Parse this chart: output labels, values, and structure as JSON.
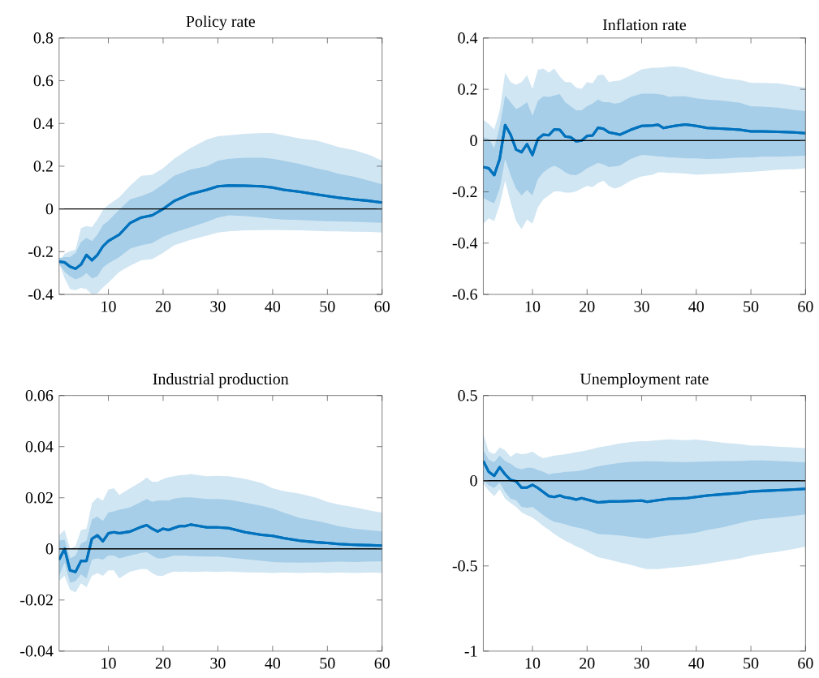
{
  "chart_data": [
    {
      "type": "line",
      "title": "Policy rate",
      "xlim": [
        1,
        60
      ],
      "xticks": [
        10,
        20,
        30,
        40,
        50,
        60
      ],
      "ylim": [
        -0.4,
        0.8
      ],
      "yticks": [
        -0.4,
        -0.2,
        0,
        0.2,
        0.4,
        0.6,
        0.8
      ],
      "ref_lines": [
        {
          "axis": "y",
          "value": 0,
          "color": "#000000"
        }
      ],
      "series": [
        {
          "color": "#0072bd",
          "x": [
            1,
            2,
            3,
            4,
            5,
            6,
            7,
            8,
            9,
            10,
            12,
            14,
            16,
            18,
            20,
            22,
            25,
            28,
            30,
            32,
            35,
            38,
            40,
            42,
            45,
            48,
            50,
            52,
            55,
            58,
            60
          ],
          "values": [
            -0.246,
            -0.25,
            -0.27,
            -0.28,
            -0.26,
            -0.215,
            -0.24,
            -0.215,
            -0.175,
            -0.15,
            -0.12,
            -0.065,
            -0.04,
            -0.03,
            0,
            0.037,
            0.07,
            0.09,
            0.106,
            0.11,
            0.109,
            0.106,
            0.1,
            0.09,
            0.08,
            0.068,
            0.06,
            0.053,
            0.044,
            0.037,
            0.03
          ],
          "upper": [
            -0.244,
            -0.21,
            -0.198,
            -0.19,
            -0.09,
            -0.08,
            -0.085,
            -0.05,
            -0.005,
            0.02,
            0.055,
            0.11,
            0.155,
            0.16,
            0.19,
            0.235,
            0.285,
            0.325,
            0.34,
            0.345,
            0.352,
            0.355,
            0.355,
            0.345,
            0.33,
            0.32,
            0.306,
            0.29,
            0.275,
            0.25,
            0.225
          ],
          "lower": [
            -0.255,
            -0.325,
            -0.375,
            -0.38,
            -0.37,
            -0.375,
            -0.4,
            -0.395,
            -0.368,
            -0.345,
            -0.295,
            -0.265,
            -0.24,
            -0.235,
            -0.205,
            -0.17,
            -0.145,
            -0.125,
            -0.11,
            -0.105,
            -0.1,
            -0.099,
            -0.098,
            -0.099,
            -0.1,
            -0.103,
            -0.105,
            -0.105,
            -0.107,
            -0.108,
            -0.11
          ]
        },
        {
          "color": "#0072bd",
          "x": [
            1,
            2,
            3,
            4,
            5,
            6,
            7,
            8,
            9,
            10,
            12,
            14,
            16,
            18,
            20,
            22,
            25,
            28,
            30,
            32,
            35,
            38,
            40,
            42,
            45,
            48,
            50,
            52,
            55,
            58,
            60
          ],
          "values": [
            -0.246,
            -0.25,
            -0.27,
            -0.28,
            -0.26,
            -0.215,
            -0.24,
            -0.215,
            -0.175,
            -0.15,
            -0.12,
            -0.065,
            -0.04,
            -0.03,
            0,
            0.037,
            0.07,
            0.09,
            0.106,
            0.11,
            0.109,
            0.106,
            0.1,
            0.09,
            0.08,
            0.068,
            0.06,
            0.053,
            0.044,
            0.037,
            0.03
          ],
          "upper": [
            -0.23,
            -0.225,
            -0.225,
            -0.205,
            -0.155,
            -0.135,
            -0.15,
            -0.12,
            -0.075,
            -0.055,
            -0.003,
            0.045,
            0.06,
            0.08,
            0.115,
            0.155,
            0.185,
            0.2,
            0.225,
            0.235,
            0.24,
            0.24,
            0.235,
            0.225,
            0.21,
            0.19,
            0.18,
            0.165,
            0.15,
            0.13,
            0.115
          ],
          "lower": [
            -0.255,
            -0.295,
            -0.315,
            -0.33,
            -0.32,
            -0.3,
            -0.325,
            -0.315,
            -0.275,
            -0.255,
            -0.225,
            -0.185,
            -0.17,
            -0.16,
            -0.13,
            -0.11,
            -0.086,
            -0.06,
            -0.04,
            -0.03,
            -0.034,
            -0.04,
            -0.046,
            -0.05,
            -0.052,
            -0.055,
            -0.057,
            -0.058,
            -0.06,
            -0.063,
            -0.065
          ]
        }
      ]
    },
    {
      "type": "line",
      "title": "Inflation rate",
      "xlim": [
        1,
        60
      ],
      "xticks": [
        10,
        20,
        30,
        40,
        50,
        60
      ],
      "ylim": [
        -0.6,
        0.4
      ],
      "yticks": [
        -0.6,
        -0.4,
        -0.2,
        0,
        0.2,
        0.4
      ],
      "ref_lines": [
        {
          "axis": "y",
          "value": 0,
          "color": "#000000"
        }
      ],
      "series": [
        {
          "color": "#0072bd",
          "x": [
            1,
            2,
            3,
            4,
            5,
            6,
            7,
            8,
            9,
            10,
            11,
            12,
            13,
            14,
            15,
            16,
            17,
            18,
            19,
            20,
            21,
            22,
            23,
            24,
            25,
            26,
            28,
            30,
            32,
            33,
            34,
            35,
            36,
            38,
            40,
            42,
            45,
            48,
            50,
            52,
            55,
            58,
            60
          ],
          "values": [
            -0.103,
            -0.108,
            -0.135,
            -0.072,
            0.06,
            0.023,
            -0.035,
            -0.045,
            -0.014,
            -0.056,
            0.007,
            0.023,
            0.021,
            0.044,
            0.042,
            0.016,
            0.013,
            -0.003,
            0,
            0.018,
            0.02,
            0.05,
            0.046,
            0.032,
            0.028,
            0.023,
            0.042,
            0.057,
            0.059,
            0.062,
            0.049,
            0.053,
            0.057,
            0.063,
            0.057,
            0.049,
            0.046,
            0.042,
            0.036,
            0.036,
            0.034,
            0.032,
            0.029
          ],
          "upper": [
            0.081,
            0.065,
            0.044,
            0.118,
            0.265,
            0.228,
            0.218,
            0.228,
            0.255,
            0.202,
            0.276,
            0.281,
            0.265,
            0.281,
            0.25,
            0.228,
            0.228,
            0.207,
            0.202,
            0.228,
            0.223,
            0.255,
            0.257,
            0.228,
            0.232,
            0.234,
            0.255,
            0.278,
            0.284,
            0.284,
            0.286,
            0.289,
            0.29,
            0.284,
            0.271,
            0.26,
            0.244,
            0.236,
            0.226,
            0.225,
            0.223,
            0.213,
            0.207
          ],
          "lower": [
            -0.324,
            -0.303,
            -0.314,
            -0.25,
            -0.156,
            -0.24,
            -0.314,
            -0.345,
            -0.308,
            -0.324,
            -0.261,
            -0.229,
            -0.214,
            -0.198,
            -0.198,
            -0.203,
            -0.203,
            -0.198,
            -0.187,
            -0.177,
            -0.182,
            -0.166,
            -0.156,
            -0.177,
            -0.187,
            -0.182,
            -0.156,
            -0.14,
            -0.133,
            -0.124,
            -0.124,
            -0.126,
            -0.126,
            -0.129,
            -0.133,
            -0.131,
            -0.129,
            -0.124,
            -0.122,
            -0.119,
            -0.114,
            -0.112,
            -0.108
          ]
        },
        {
          "color": "#0072bd",
          "x": [
            1,
            2,
            3,
            4,
            5,
            6,
            7,
            8,
            9,
            10,
            11,
            12,
            13,
            14,
            15,
            16,
            17,
            18,
            19,
            20,
            21,
            22,
            23,
            24,
            25,
            26,
            28,
            30,
            32,
            33,
            34,
            35,
            36,
            38,
            40,
            42,
            45,
            48,
            50,
            52,
            55,
            58,
            60
          ],
          "values": [
            -0.103,
            -0.108,
            -0.135,
            -0.072,
            0.06,
            0.023,
            -0.035,
            -0.045,
            -0.014,
            -0.056,
            0.007,
            0.023,
            0.021,
            0.044,
            0.042,
            0.016,
            0.013,
            -0.003,
            0,
            0.018,
            0.02,
            0.05,
            0.046,
            0.032,
            0.028,
            0.023,
            0.042,
            0.057,
            0.059,
            0.062,
            0.049,
            0.053,
            0.057,
            0.063,
            0.057,
            0.049,
            0.046,
            0.042,
            0.036,
            0.036,
            0.034,
            0.032,
            0.029
          ],
          "upper": [
            0.013,
            0.007,
            -0.03,
            0.055,
            0.176,
            0.15,
            0.123,
            0.134,
            0.15,
            0.097,
            0.155,
            0.173,
            0.17,
            0.176,
            0.181,
            0.15,
            0.134,
            0.118,
            0.118,
            0.134,
            0.144,
            0.16,
            0.15,
            0.15,
            0.144,
            0.147,
            0.17,
            0.183,
            0.183,
            0.181,
            0.178,
            0.17,
            0.173,
            0.173,
            0.165,
            0.16,
            0.155,
            0.147,
            0.134,
            0.132,
            0.128,
            0.12,
            0.115
          ],
          "lower": [
            -0.224,
            -0.235,
            -0.245,
            -0.187,
            -0.072,
            -0.135,
            -0.187,
            -0.214,
            -0.193,
            -0.214,
            -0.15,
            -0.124,
            -0.108,
            -0.098,
            -0.108,
            -0.124,
            -0.133,
            -0.135,
            -0.124,
            -0.108,
            -0.098,
            -0.087,
            -0.093,
            -0.103,
            -0.101,
            -0.098,
            -0.072,
            -0.056,
            -0.059,
            -0.062,
            -0.063,
            -0.066,
            -0.066,
            -0.069,
            -0.069,
            -0.072,
            -0.07,
            -0.066,
            -0.066,
            -0.063,
            -0.063,
            -0.061,
            -0.059
          ]
        }
      ]
    },
    {
      "type": "line",
      "title": "Industrial production",
      "xlim": [
        1,
        60
      ],
      "xticks": [
        10,
        20,
        30,
        40,
        50,
        60
      ],
      "ylim": [
        -0.04,
        0.06
      ],
      "yticks": [
        -0.04,
        -0.02,
        0,
        0.02,
        0.04,
        0.06
      ],
      "ref_lines": [
        {
          "axis": "y",
          "value": 0,
          "color": "#000000"
        }
      ],
      "series": [
        {
          "color": "#0072bd",
          "x": [
            1,
            2,
            3,
            4,
            5,
            6,
            7,
            8,
            9,
            10,
            11,
            12,
            14,
            16,
            17,
            18,
            19,
            20,
            21,
            22,
            23,
            24,
            25,
            28,
            30,
            32,
            35,
            38,
            40,
            42,
            45,
            48,
            50,
            52,
            55,
            58,
            60
          ],
          "values": [
            -0.0042,
            0,
            -0.0084,
            -0.009,
            -0.0047,
            -0.0047,
            0.004,
            0.0053,
            0.003,
            0.0061,
            0.0065,
            0.0061,
            0.0068,
            0.0086,
            0.0093,
            0.0079,
            0.0068,
            0.0079,
            0.0074,
            0.0082,
            0.0089,
            0.0089,
            0.0095,
            0.0084,
            0.0084,
            0.0081,
            0.0065,
            0.0055,
            0.0051,
            0.0042,
            0.0032,
            0.0026,
            0.0023,
            0.0019,
            0.0016,
            0.0014,
            0.0013
          ],
          "upper": [
            0.0053,
            0.0074,
            0,
            0.0011,
            0.0074,
            0.0079,
            0.0179,
            0.0202,
            0.0189,
            0.0232,
            0.0237,
            0.0211,
            0.0237,
            0.0263,
            0.0279,
            0.0263,
            0.0263,
            0.0274,
            0.028,
            0.0284,
            0.0288,
            0.029,
            0.0293,
            0.0284,
            0.0286,
            0.0284,
            0.0274,
            0.0258,
            0.0237,
            0.0226,
            0.0216,
            0.02,
            0.0184,
            0.0174,
            0.0163,
            0.0149,
            0.0142
          ],
          "lower": [
            -0.0125,
            -0.0105,
            -0.016,
            -0.017,
            -0.0135,
            -0.015,
            -0.0105,
            -0.0095,
            -0.0105,
            -0.0084,
            -0.0084,
            -0.0116,
            -0.0089,
            -0.0079,
            -0.0079,
            -0.0095,
            -0.0105,
            -0.0105,
            -0.0095,
            -0.0089,
            -0.009,
            -0.0089,
            -0.009,
            -0.0089,
            -0.009,
            -0.0089,
            -0.0092,
            -0.0093,
            -0.0094,
            -0.0093,
            -0.0094,
            -0.0093,
            -0.0094,
            -0.0093,
            -0.0094,
            -0.0093,
            -0.0094
          ]
        },
        {
          "color": "#0072bd",
          "x": [
            1,
            2,
            3,
            4,
            5,
            6,
            7,
            8,
            9,
            10,
            11,
            12,
            14,
            16,
            17,
            18,
            19,
            20,
            21,
            22,
            23,
            24,
            25,
            28,
            30,
            32,
            35,
            38,
            40,
            42,
            45,
            48,
            50,
            52,
            55,
            58,
            60
          ],
          "values": [
            -0.0042,
            0,
            -0.0084,
            -0.009,
            -0.0047,
            -0.0047,
            0.004,
            0.0053,
            0.003,
            0.0061,
            0.0065,
            0.0061,
            0.0068,
            0.0086,
            0.0093,
            0.0079,
            0.0068,
            0.0079,
            0.0074,
            0.0082,
            0.0089,
            0.0089,
            0.0095,
            0.0084,
            0.0084,
            0.0081,
            0.0065,
            0.0055,
            0.0051,
            0.0042,
            0.0032,
            0.0026,
            0.0023,
            0.0019,
            0.0016,
            0.0014,
            0.0013
          ],
          "upper": [
            0.0032,
            0.0037,
            -0.0037,
            -0.0026,
            0.0021,
            0.0032,
            0.0116,
            0.0126,
            0.011,
            0.0142,
            0.0147,
            0.0153,
            0.0163,
            0.0184,
            0.0195,
            0.0184,
            0.0189,
            0.019,
            0.0189,
            0.0197,
            0.02,
            0.0202,
            0.0202,
            0.0195,
            0.0195,
            0.0192,
            0.0181,
            0.0168,
            0.0158,
            0.0142,
            0.0121,
            0.011,
            0.01,
            0.0089,
            0.0079,
            0.0072,
            0.0068
          ],
          "lower": [
            -0.0105,
            -0.0053,
            -0.0132,
            -0.0126,
            -0.01,
            -0.0116,
            -0.0042,
            -0.0037,
            -0.0042,
            -0.0026,
            -0.0026,
            -0.0037,
            -0.0026,
            -0.0016,
            -0.0013,
            -0.0026,
            -0.0037,
            -0.0037,
            -0.0032,
            -0.0026,
            -0.0027,
            -0.0026,
            -0.0028,
            -0.003,
            -0.003,
            -0.0034,
            -0.004,
            -0.0047,
            -0.0051,
            -0.0053,
            -0.0054,
            -0.0053,
            -0.0051,
            -0.005,
            -0.0051,
            -0.0049,
            -0.0049
          ]
        }
      ]
    },
    {
      "type": "line",
      "title": "Unemployment rate",
      "xlim": [
        1,
        60
      ],
      "xticks": [
        10,
        20,
        30,
        40,
        50,
        60
      ],
      "ylim": [
        -1,
        0.5
      ],
      "yticks": [
        -1,
        -0.5,
        0,
        0.5
      ],
      "ref_lines": [
        {
          "axis": "y",
          "value": 0,
          "color": "#000000"
        }
      ],
      "series": [
        {
          "color": "#0072bd",
          "x": [
            1,
            2,
            3,
            4,
            5,
            6,
            7,
            8,
            9,
            10,
            11,
            12,
            13,
            14,
            15,
            16,
            17,
            18,
            19,
            20,
            22,
            24,
            26,
            28,
            30,
            31,
            33,
            35,
            38,
            40,
            42,
            45,
            48,
            50,
            52,
            55,
            58,
            60
          ],
          "values": [
            0.116,
            0.052,
            0.029,
            0.079,
            0.037,
            0.005,
            -0.003,
            -0.04,
            -0.04,
            -0.024,
            -0.043,
            -0.067,
            -0.09,
            -0.095,
            -0.087,
            -0.098,
            -0.102,
            -0.111,
            -0.102,
            -0.111,
            -0.127,
            -0.122,
            -0.121,
            -0.119,
            -0.117,
            -0.124,
            -0.114,
            -0.106,
            -0.103,
            -0.095,
            -0.087,
            -0.079,
            -0.071,
            -0.063,
            -0.06,
            -0.056,
            -0.051,
            -0.048
          ],
          "upper": [
            0.275,
            0.171,
            0.156,
            0.195,
            0.179,
            0.14,
            0.163,
            0.156,
            0.159,
            0.171,
            0.148,
            0.132,
            0.141,
            0.148,
            0.151,
            0.156,
            0.161,
            0.168,
            0.173,
            0.179,
            0.195,
            0.206,
            0.219,
            0.227,
            0.232,
            0.232,
            0.238,
            0.243,
            0.238,
            0.241,
            0.235,
            0.222,
            0.216,
            0.206,
            0.206,
            0.2,
            0.195,
            0.19
          ],
          "lower": [
            -0.019,
            -0.059,
            -0.09,
            -0.051,
            -0.106,
            -0.131,
            -0.154,
            -0.186,
            -0.202,
            -0.217,
            -0.24,
            -0.266,
            -0.288,
            -0.313,
            -0.333,
            -0.352,
            -0.368,
            -0.385,
            -0.399,
            -0.416,
            -0.448,
            -0.463,
            -0.48,
            -0.494,
            -0.511,
            -0.519,
            -0.519,
            -0.511,
            -0.503,
            -0.496,
            -0.487,
            -0.471,
            -0.456,
            -0.44,
            -0.429,
            -0.416,
            -0.4,
            -0.387
          ]
        },
        {
          "color": "#0072bd",
          "x": [
            1,
            2,
            3,
            4,
            5,
            6,
            7,
            8,
            9,
            10,
            11,
            12,
            13,
            14,
            15,
            16,
            17,
            18,
            19,
            20,
            22,
            24,
            26,
            28,
            30,
            31,
            33,
            35,
            38,
            40,
            42,
            45,
            48,
            50,
            52,
            55,
            58,
            60
          ],
          "values": [
            0.116,
            0.052,
            0.029,
            0.079,
            0.037,
            0.005,
            -0.003,
            -0.04,
            -0.04,
            -0.024,
            -0.043,
            -0.067,
            -0.09,
            -0.095,
            -0.087,
            -0.098,
            -0.102,
            -0.111,
            -0.102,
            -0.111,
            -0.127,
            -0.122,
            -0.121,
            -0.119,
            -0.117,
            -0.124,
            -0.114,
            -0.106,
            -0.103,
            -0.095,
            -0.087,
            -0.079,
            -0.071,
            -0.063,
            -0.06,
            -0.056,
            -0.051,
            -0.048
          ],
          "upper": [
            0.179,
            0.124,
            0.108,
            0.148,
            0.116,
            0.1,
            0.076,
            0.068,
            0.076,
            0.076,
            0.063,
            0.052,
            0.037,
            0.044,
            0.047,
            0.052,
            0.053,
            0.056,
            0.061,
            0.068,
            0.084,
            0.095,
            0.105,
            0.111,
            0.113,
            0.114,
            0.113,
            0.111,
            0.11,
            0.111,
            0.113,
            0.116,
            0.116,
            0.119,
            0.119,
            0.116,
            0.111,
            0.108
          ],
          "lower": [
            0.005,
            -0.027,
            -0.043,
            -0.011,
            -0.067,
            -0.106,
            -0.114,
            -0.154,
            -0.159,
            -0.154,
            -0.177,
            -0.202,
            -0.225,
            -0.241,
            -0.248,
            -0.256,
            -0.266,
            -0.274,
            -0.28,
            -0.289,
            -0.313,
            -0.316,
            -0.321,
            -0.33,
            -0.337,
            -0.34,
            -0.329,
            -0.321,
            -0.313,
            -0.305,
            -0.289,
            -0.273,
            -0.249,
            -0.233,
            -0.225,
            -0.217,
            -0.206,
            -0.198
          ]
        }
      ]
    }
  ]
}
